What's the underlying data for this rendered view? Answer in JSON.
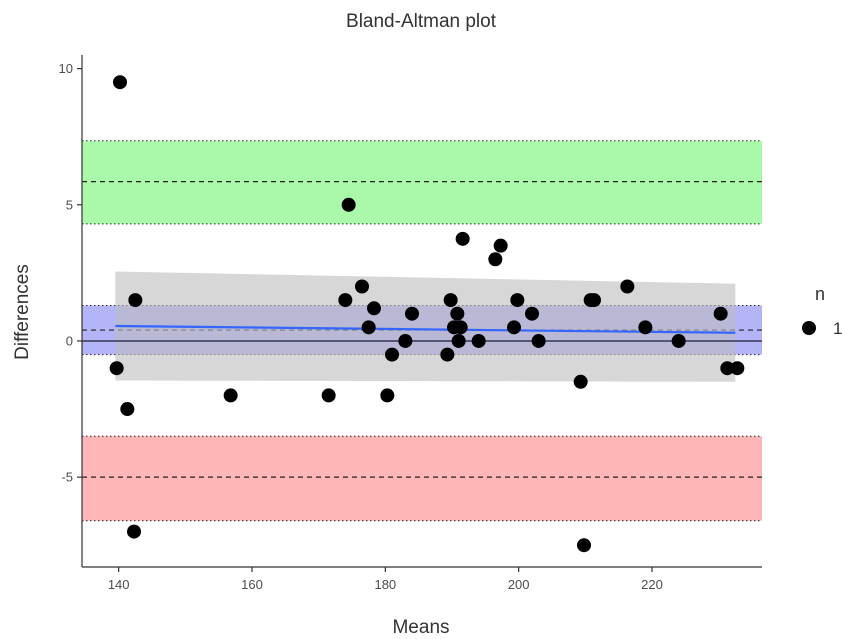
{
  "chart_data": {
    "type": "scatter",
    "title": "Bland-Altman plot",
    "xlabel": "Means",
    "ylabel": "Differences",
    "xlim": [
      134.5,
      236.5
    ],
    "ylim": [
      -8.3,
      10.5
    ],
    "xticks": [
      140,
      160,
      180,
      200,
      220
    ],
    "yticks": [
      -5,
      0,
      5,
      10
    ],
    "grid": false,
    "legend": {
      "title": "n",
      "entries": [
        {
          "label": "1",
          "color": "#000000"
        }
      ],
      "position": "right"
    },
    "reference_bands": [
      {
        "name": "upper-loa",
        "center": 5.85,
        "low": 4.3,
        "high": 7.35,
        "color": "#8ef58e"
      },
      {
        "name": "mean-bias",
        "center": 0.4,
        "low": -0.5,
        "high": 1.3,
        "color": "#9b9bf7"
      },
      {
        "name": "lower-loa",
        "center": -5.0,
        "low": -6.6,
        "high": -3.5,
        "color": "#ff9e9e"
      }
    ],
    "zero_line": 0,
    "regression": {
      "x_range": [
        139.5,
        232.5
      ],
      "fit": [
        0.55,
        0.3
      ],
      "ci_upper": [
        2.55,
        2.1
      ],
      "ci_lower": [
        -1.45,
        -1.5
      ],
      "line_color": "#3366ff",
      "band_color": "#bdbdbd"
    },
    "points": [
      {
        "x": 140.2,
        "y": 9.5
      },
      {
        "x": 139.7,
        "y": -1.0
      },
      {
        "x": 141.3,
        "y": -2.5
      },
      {
        "x": 142.5,
        "y": 1.5
      },
      {
        "x": 142.3,
        "y": -7.0
      },
      {
        "x": 156.8,
        "y": -2.0
      },
      {
        "x": 171.5,
        "y": -2.0
      },
      {
        "x": 174.0,
        "y": 1.5
      },
      {
        "x": 174.5,
        "y": 5.0
      },
      {
        "x": 176.5,
        "y": 2.0
      },
      {
        "x": 177.5,
        "y": 0.5
      },
      {
        "x": 178.3,
        "y": 1.2
      },
      {
        "x": 180.3,
        "y": -2.0
      },
      {
        "x": 181.0,
        "y": -0.5
      },
      {
        "x": 183.0,
        "y": 0.0
      },
      {
        "x": 184.0,
        "y": 1.0
      },
      {
        "x": 189.3,
        "y": -0.5
      },
      {
        "x": 189.8,
        "y": 1.5
      },
      {
        "x": 190.3,
        "y": 0.5
      },
      {
        "x": 190.8,
        "y": 1.0
      },
      {
        "x": 191.0,
        "y": 0.0
      },
      {
        "x": 191.3,
        "y": 0.5
      },
      {
        "x": 191.6,
        "y": 3.75
      },
      {
        "x": 194.0,
        "y": 0.0
      },
      {
        "x": 196.5,
        "y": 3.0
      },
      {
        "x": 197.3,
        "y": 3.5
      },
      {
        "x": 199.3,
        "y": 0.5
      },
      {
        "x": 199.8,
        "y": 1.5
      },
      {
        "x": 202.0,
        "y": 1.0
      },
      {
        "x": 203.0,
        "y": 0.0
      },
      {
        "x": 209.3,
        "y": -1.5
      },
      {
        "x": 209.8,
        "y": -7.5
      },
      {
        "x": 210.8,
        "y": 1.5
      },
      {
        "x": 211.3,
        "y": 1.5
      },
      {
        "x": 216.3,
        "y": 2.0
      },
      {
        "x": 219.0,
        "y": 0.5
      },
      {
        "x": 224.0,
        "y": 0.0
      },
      {
        "x": 230.3,
        "y": 1.0
      },
      {
        "x": 231.3,
        "y": -1.0
      },
      {
        "x": 232.8,
        "y": -1.0
      }
    ]
  }
}
